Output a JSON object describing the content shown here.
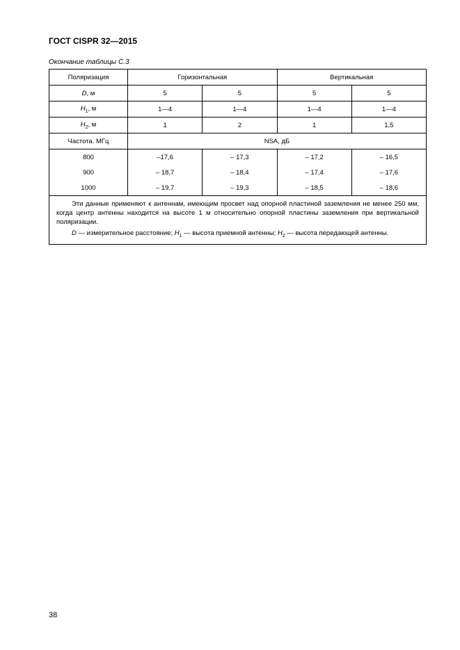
{
  "doc": {
    "title": "ГОСТ CISPR 32—2015",
    "table_caption": "Окончание таблицы С.3",
    "page_number": "38"
  },
  "table": {
    "headers": {
      "polarization": "Поляризация",
      "horizontal": "Горизонтальная",
      "vertical": "Вертикальная"
    },
    "row_labels": {
      "D": "D",
      "D_unit": ", м",
      "H1": "H",
      "H1_sub": "1",
      "H1_unit": ", м",
      "H2": "H",
      "H2_sub": "2",
      "H2_unit": ", м",
      "freq": "Частота. МГц",
      "nsa": "NSA, дБ"
    },
    "header_rows": {
      "D": [
        "5",
        "5",
        "5",
        "5"
      ],
      "H1": [
        "1—4",
        "1—4",
        "1—4",
        "1—4"
      ],
      "H2": [
        "1",
        "2",
        "1",
        "1,5"
      ]
    },
    "data": [
      {
        "freq": "800",
        "v": [
          "–17,6",
          "– 17,3",
          "– 17,2",
          "– 16,5"
        ]
      },
      {
        "freq": "900",
        "v": [
          "– 18,7",
          "– 18,4",
          "– 17,4",
          "– 17,6"
        ]
      },
      {
        "freq": "1000",
        "v": [
          "– 19,7",
          "– 19,3",
          "– 18,5",
          "– 18,6"
        ]
      }
    ]
  },
  "footnotes": {
    "p1": "Эти данные применяют к антеннам, имеющим просвет над опорной пластиной заземления не менее 250 мм, когда центр антенны находится на высоте 1 м относительно опорной пластины заземления при вертикальной поляризации.",
    "def_D_sym": "D",
    "def_D": " — измерительное расстояние; ",
    "def_H1_sym": "H",
    "def_H1_sub": "1",
    "def_H1": " — высота приемной антенны; ",
    "def_H2_sym": "H",
    "def_H2_sub": "2",
    "def_H2": " — высота передающей антенны."
  }
}
